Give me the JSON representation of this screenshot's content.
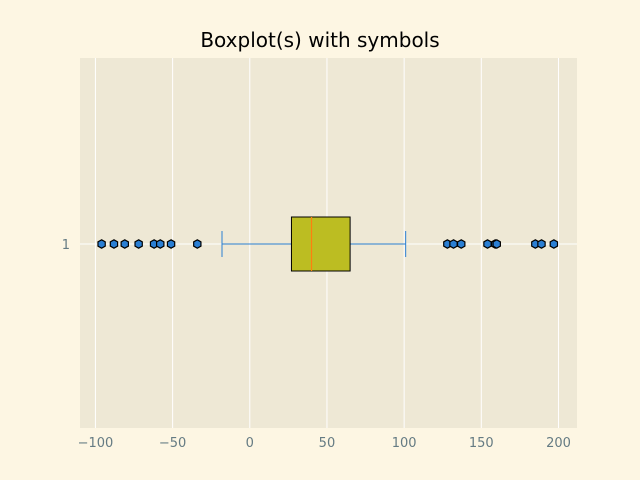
{
  "chart_data": {
    "type": "boxplot",
    "orientation": "horizontal",
    "title": "Boxplot(s) with symbols",
    "xlabel": "",
    "ylabel": "",
    "xlim": [
      -110,
      212
    ],
    "xticks": [
      -100,
      -50,
      0,
      50,
      100,
      150,
      200
    ],
    "xtick_labels": [
      "−100",
      "−50",
      "0",
      "50",
      "100",
      "150",
      "200"
    ],
    "yticks": [
      "1"
    ],
    "grid": true,
    "boxes": [
      {
        "category": "1",
        "whisker_low": -18,
        "q1": 27,
        "median": 40,
        "q3": 65,
        "whisker_high": 101,
        "outliers": [
          -96,
          -88,
          -81,
          -72,
          -62,
          -58,
          -51,
          -34,
          128,
          132,
          137,
          154,
          159,
          160,
          185,
          189,
          197
        ]
      }
    ],
    "colors": {
      "figure_bg": "#fdf6e3",
      "axes_bg": "#eee8d5",
      "grid": "#ffffff",
      "box_fill": "#bcbd22",
      "box_edge": "#000000",
      "median": "#ff7f0e",
      "whisker": "#2a7fd4",
      "outlier_fill": "#2a7fd4",
      "outlier_edge": "#000000",
      "tick_label": "#657b83"
    },
    "outlier_marker": "hexagon"
  }
}
